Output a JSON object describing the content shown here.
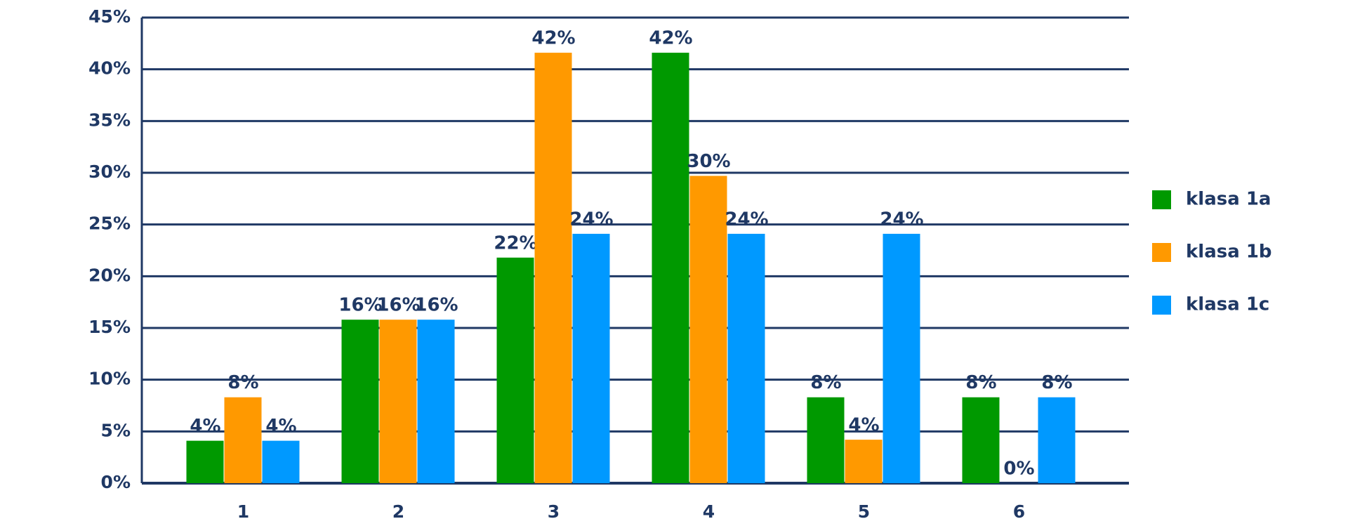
{
  "chart_data": {
    "type": "bar",
    "categories": [
      "1",
      "2",
      "3",
      "4",
      "5",
      "6"
    ],
    "series": [
      {
        "name": "klasa 1a",
        "color": "#009900",
        "values": [
          4.1,
          15.8,
          21.8,
          41.6,
          8.3,
          8.3
        ],
        "value_labels": [
          "4%",
          "16%",
          "22%",
          "42%",
          "8%",
          "8%"
        ]
      },
      {
        "name": "klasa 1b",
        "color": "#ff9900",
        "values": [
          8.3,
          15.8,
          41.6,
          29.7,
          4.2,
          0
        ],
        "value_labels": [
          "8%",
          "16%",
          "42%",
          "30%",
          "4%",
          "0%"
        ]
      },
      {
        "name": "klasa 1c",
        "color": "#0099ff",
        "values": [
          4.1,
          15.8,
          24.1,
          24.1,
          24.1,
          8.3
        ],
        "value_labels": [
          "4%",
          "16%",
          "24%",
          "24%",
          "24%",
          "8%"
        ]
      }
    ],
    "ylim": [
      0,
      45
    ],
    "yticks": [
      {
        "value": 0,
        "label": "0%"
      },
      {
        "value": 5,
        "label": "5%"
      },
      {
        "value": 10,
        "label": "10%"
      },
      {
        "value": 15,
        "label": "15%"
      },
      {
        "value": 20,
        "label": "20%"
      },
      {
        "value": 25,
        "label": "25%"
      },
      {
        "value": 30,
        "label": "30%"
      },
      {
        "value": 35,
        "label": "35%"
      },
      {
        "value": 40,
        "label": "40%"
      },
      {
        "value": 45,
        "label": "45%"
      }
    ],
    "grid": true,
    "legend": "right"
  }
}
